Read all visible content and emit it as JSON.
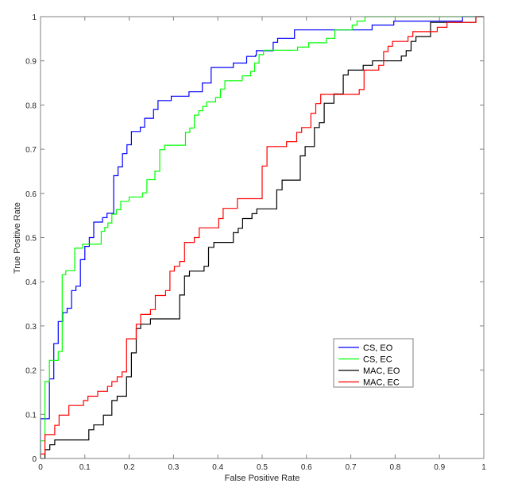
{
  "chart_data": {
    "type": "line",
    "title": "",
    "xlabel": "False Positive Rate",
    "ylabel": "True Positive Rate",
    "xlim": [
      0,
      1
    ],
    "ylim": [
      0,
      1
    ],
    "xticks": [
      "0",
      "0.1",
      "0.2",
      "0.3",
      "0.4",
      "0.5",
      "0.6",
      "0.7",
      "0.8",
      "0.9",
      "1"
    ],
    "yticks": [
      "0",
      "0.1",
      "0.2",
      "0.3",
      "0.4",
      "0.5",
      "0.6",
      "0.7",
      "0.8",
      "0.9",
      "1"
    ],
    "grid": false,
    "legend_position": "bottom-right",
    "step": true,
    "series": [
      {
        "name": "CS, EO",
        "color": "#0000ff",
        "points": [
          [
            0,
            0
          ],
          [
            0,
            0.09
          ],
          [
            0.02,
            0.1
          ],
          [
            0.02,
            0.18
          ],
          [
            0.03,
            0.26
          ],
          [
            0.04,
            0.31
          ],
          [
            0.05,
            0.33
          ],
          [
            0.06,
            0.34
          ],
          [
            0.07,
            0.38
          ],
          [
            0.08,
            0.39
          ],
          [
            0.09,
            0.45
          ],
          [
            0.1,
            0.48
          ],
          [
            0.11,
            0.5
          ],
          [
            0.12,
            0.535
          ],
          [
            0.14,
            0.545
          ],
          [
            0.15,
            0.555
          ],
          [
            0.165,
            0.64
          ],
          [
            0.175,
            0.66
          ],
          [
            0.185,
            0.69
          ],
          [
            0.195,
            0.71
          ],
          [
            0.205,
            0.74
          ],
          [
            0.225,
            0.75
          ],
          [
            0.235,
            0.77
          ],
          [
            0.255,
            0.79
          ],
          [
            0.265,
            0.81
          ],
          [
            0.295,
            0.82
          ],
          [
            0.335,
            0.83
          ],
          [
            0.365,
            0.85
          ],
          [
            0.385,
            0.885
          ],
          [
            0.435,
            0.895
          ],
          [
            0.465,
            0.91
          ],
          [
            0.485,
            0.912
          ],
          [
            0.487,
            0.923
          ],
          [
            0.525,
            0.942
          ],
          [
            0.535,
            0.951
          ],
          [
            0.573,
            0.97
          ],
          [
            0.748,
            0.981
          ],
          [
            0.797,
            0.99
          ],
          [
            0.952,
            1
          ],
          [
            1,
            1
          ]
        ]
      },
      {
        "name": "CS, EC",
        "color": "#00ff00",
        "points": [
          [
            0,
            0
          ],
          [
            0,
            0.04
          ],
          [
            0.01,
            0.174
          ],
          [
            0.02,
            0.222
          ],
          [
            0.04,
            0.242
          ],
          [
            0.049,
            0.416
          ],
          [
            0.057,
            0.425
          ],
          [
            0.077,
            0.476
          ],
          [
            0.095,
            0.485
          ],
          [
            0.137,
            0.514
          ],
          [
            0.145,
            0.523
          ],
          [
            0.152,
            0.533
          ],
          [
            0.161,
            0.553
          ],
          [
            0.171,
            0.563
          ],
          [
            0.181,
            0.582
          ],
          [
            0.2,
            0.592
          ],
          [
            0.23,
            0.601
          ],
          [
            0.24,
            0.631
          ],
          [
            0.258,
            0.65
          ],
          [
            0.269,
            0.699
          ],
          [
            0.28,
            0.709
          ],
          [
            0.327,
            0.738
          ],
          [
            0.337,
            0.748
          ],
          [
            0.347,
            0.777
          ],
          [
            0.357,
            0.787
          ],
          [
            0.366,
            0.797
          ],
          [
            0.375,
            0.807
          ],
          [
            0.395,
            0.817
          ],
          [
            0.406,
            0.836
          ],
          [
            0.416,
            0.855
          ],
          [
            0.455,
            0.866
          ],
          [
            0.474,
            0.876
          ],
          [
            0.483,
            0.895
          ],
          [
            0.493,
            0.914
          ],
          [
            0.503,
            0.924
          ],
          [
            0.58,
            0.931
          ],
          [
            0.605,
            0.941
          ],
          [
            0.645,
            0.951
          ],
          [
            0.664,
            0.97
          ],
          [
            0.703,
            0.981
          ],
          [
            0.714,
            0.99
          ],
          [
            0.732,
            1
          ],
          [
            1,
            1
          ]
        ]
      },
      {
        "name": "MAC, EO",
        "color": "#000000",
        "points": [
          [
            0,
            0
          ],
          [
            0.01,
            0.02
          ],
          [
            0.021,
            0.031
          ],
          [
            0.032,
            0.042
          ],
          [
            0.109,
            0.065
          ],
          [
            0.12,
            0.076
          ],
          [
            0.142,
            0.098
          ],
          [
            0.161,
            0.131
          ],
          [
            0.173,
            0.141
          ],
          [
            0.194,
            0.185
          ],
          [
            0.205,
            0.239
          ],
          [
            0.216,
            0.294
          ],
          [
            0.226,
            0.304
          ],
          [
            0.248,
            0.316
          ],
          [
            0.314,
            0.37
          ],
          [
            0.325,
            0.413
          ],
          [
            0.336,
            0.424
          ],
          [
            0.369,
            0.435
          ],
          [
            0.379,
            0.478
          ],
          [
            0.391,
            0.489
          ],
          [
            0.435,
            0.511
          ],
          [
            0.446,
            0.521
          ],
          [
            0.456,
            0.543
          ],
          [
            0.477,
            0.554
          ],
          [
            0.488,
            0.565
          ],
          [
            0.533,
            0.608
          ],
          [
            0.545,
            0.63
          ],
          [
            0.586,
            0.685
          ],
          [
            0.597,
            0.706
          ],
          [
            0.618,
            0.749
          ],
          [
            0.629,
            0.76
          ],
          [
            0.64,
            0.804
          ],
          [
            0.662,
            0.825
          ],
          [
            0.683,
            0.868
          ],
          [
            0.694,
            0.879
          ],
          [
            0.728,
            0.89
          ],
          [
            0.749,
            0.9
          ],
          [
            0.814,
            0.911
          ],
          [
            0.825,
            0.923
          ],
          [
            0.836,
            0.944
          ],
          [
            0.847,
            0.955
          ],
          [
            0.88,
            0.987
          ],
          [
            0.982,
            1
          ],
          [
            1,
            1
          ]
        ]
      },
      {
        "name": "MAC, EC",
        "color": "#ff0000",
        "points": [
          [
            0,
            0
          ],
          [
            0,
            0.01
          ],
          [
            0.01,
            0.054
          ],
          [
            0.032,
            0.075
          ],
          [
            0.042,
            0.098
          ],
          [
            0.064,
            0.12
          ],
          [
            0.097,
            0.131
          ],
          [
            0.107,
            0.141
          ],
          [
            0.129,
            0.152
          ],
          [
            0.151,
            0.163
          ],
          [
            0.161,
            0.174
          ],
          [
            0.173,
            0.185
          ],
          [
            0.184,
            0.196
          ],
          [
            0.194,
            0.271
          ],
          [
            0.216,
            0.304
          ],
          [
            0.226,
            0.326
          ],
          [
            0.248,
            0.337
          ],
          [
            0.259,
            0.369
          ],
          [
            0.282,
            0.38
          ],
          [
            0.292,
            0.424
          ],
          [
            0.302,
            0.435
          ],
          [
            0.314,
            0.446
          ],
          [
            0.325,
            0.489
          ],
          [
            0.347,
            0.5
          ],
          [
            0.358,
            0.522
          ],
          [
            0.402,
            0.543
          ],
          [
            0.412,
            0.566
          ],
          [
            0.444,
            0.588
          ],
          [
            0.5,
            0.662
          ],
          [
            0.511,
            0.706
          ],
          [
            0.555,
            0.717
          ],
          [
            0.578,
            0.738
          ],
          [
            0.589,
            0.749
          ],
          [
            0.61,
            0.781
          ],
          [
            0.621,
            0.803
          ],
          [
            0.632,
            0.824
          ],
          [
            0.719,
            0.835
          ],
          [
            0.73,
            0.879
          ],
          [
            0.763,
            0.89
          ],
          [
            0.774,
            0.921
          ],
          [
            0.784,
            0.933
          ],
          [
            0.794,
            0.944
          ],
          [
            0.829,
            0.955
          ],
          [
            0.84,
            0.966
          ],
          [
            0.895,
            0.976
          ],
          [
            0.917,
            0.987
          ],
          [
            0.982,
            1
          ],
          [
            1,
            1
          ]
        ]
      }
    ]
  }
}
